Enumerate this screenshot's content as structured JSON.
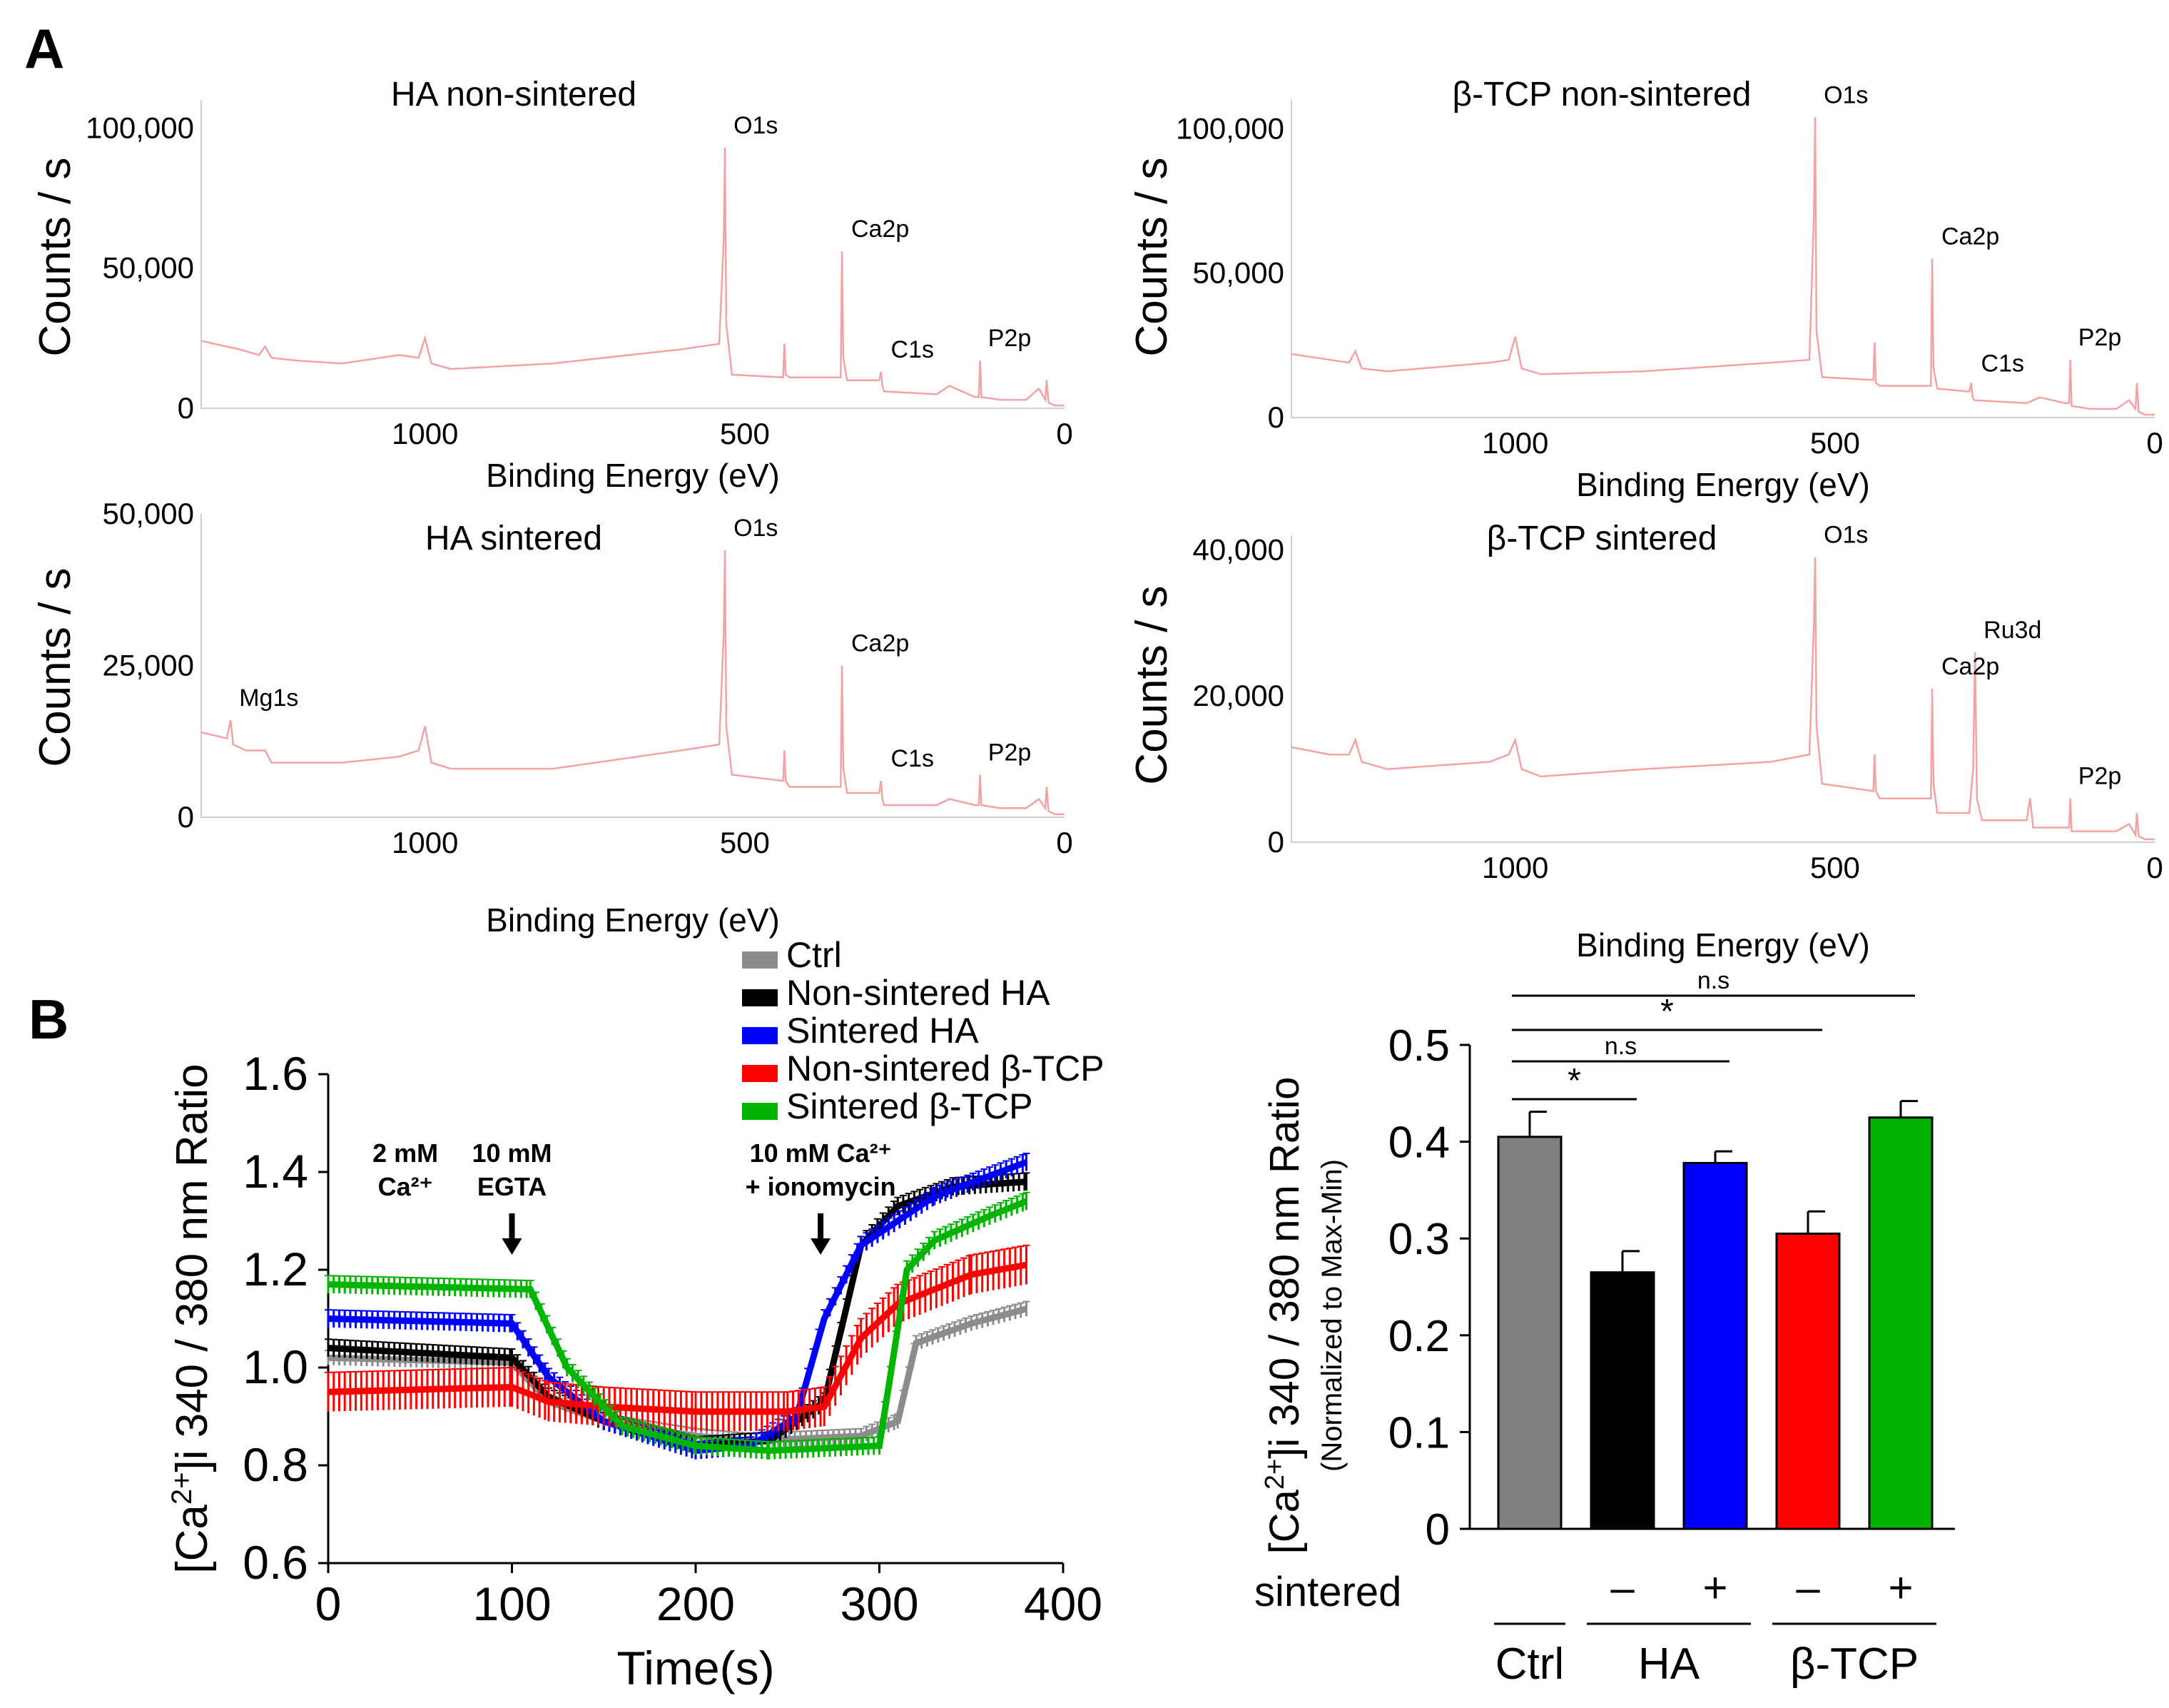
{
  "panel_labels": {
    "a": "A",
    "b": "B"
  },
  "colors": {
    "spectrum": "#f2a3a3",
    "ctrl": "#8c8c8c",
    "non_sintered_ha": "#000000",
    "sintered_ha": "#0000ff",
    "non_sintered_tcp": "#ff0000",
    "sintered_tcp": "#00b400",
    "bar_ctrl": "#808080"
  },
  "chart_data": [
    {
      "type": "line",
      "title": "HA non-sintered",
      "xlabel": "Binding Energy (eV)",
      "ylabel": "Counts / s",
      "x_reversed": true,
      "xlim": [
        1350,
        0
      ],
      "ylim": [
        0,
        110000
      ],
      "xticks": [
        {
          "value": 1000,
          "label": "1000"
        },
        {
          "value": 500,
          "label": "500"
        },
        {
          "value": 0,
          "label": "0"
        }
      ],
      "yticks": [
        {
          "value": 0,
          "label": "0"
        },
        {
          "value": 50000,
          "label": "50,000"
        },
        {
          "value": 100000,
          "label": "100,000"
        }
      ],
      "peaks": [
        {
          "label": "O1s",
          "energy": 531,
          "counts": 93000
        },
        {
          "label": "Ca2p",
          "energy": 347,
          "counts": 56000
        },
        {
          "label": "C1s",
          "energy": 285,
          "counts": 13000
        },
        {
          "label": "P2p",
          "energy": 133,
          "counts": 17000
        }
      ],
      "series": [
        {
          "x": [
            1350,
            1290,
            1260,
            1250,
            1240,
            1200,
            1130,
            1040,
            1010,
            1000,
            990,
            960,
            800,
            600,
            540,
            533,
            531,
            529,
            520,
            440,
            438,
            436,
            430,
            350,
            348,
            346,
            340,
            290,
            287,
            285,
            282,
            200,
            180,
            140,
            134,
            132,
            130,
            100,
            60,
            40,
            30,
            28,
            25,
            15,
            0
          ],
          "y": [
            24000,
            21000,
            19000,
            22000,
            18000,
            17000,
            16000,
            19000,
            18000,
            25000,
            16000,
            14000,
            16000,
            21000,
            23000,
            60000,
            93000,
            30000,
            12000,
            11000,
            23000,
            12000,
            11000,
            11000,
            56000,
            18000,
            10000,
            10000,
            13000,
            8000,
            6000,
            5000,
            8000,
            4000,
            4000,
            17000,
            4000,
            3000,
            3000,
            7000,
            3000,
            10000,
            2000,
            1000,
            1000
          ]
        }
      ]
    },
    {
      "type": "line",
      "title": "β-TCP non-sintered",
      "xlabel": "Binding Energy (eV)",
      "ylabel": "Counts / s",
      "x_reversed": true,
      "xlim": [
        1350,
        0
      ],
      "ylim": [
        0,
        110000
      ],
      "xticks": [
        {
          "value": 1000,
          "label": "1000"
        },
        {
          "value": 500,
          "label": "500"
        },
        {
          "value": 0,
          "label": "0"
        }
      ],
      "yticks": [
        {
          "value": 0,
          "label": "0"
        },
        {
          "value": 50000,
          "label": "50,000"
        },
        {
          "value": 100000,
          "label": "100,000"
        }
      ],
      "peaks": [
        {
          "label": "O1s",
          "energy": 531,
          "counts": 104000
        },
        {
          "label": "Ca2p",
          "energy": 347,
          "counts": 55000
        },
        {
          "label": "C1s",
          "energy": 285,
          "counts": 11000
        },
        {
          "label": "P2p",
          "energy": 133,
          "counts": 20000
        }
      ],
      "series": [
        {
          "x": [
            1350,
            1260,
            1250,
            1240,
            1200,
            1040,
            1010,
            1000,
            990,
            960,
            800,
            600,
            540,
            533,
            531,
            529,
            520,
            440,
            438,
            436,
            430,
            350,
            348,
            346,
            340,
            290,
            287,
            285,
            282,
            200,
            180,
            140,
            134,
            132,
            130,
            100,
            60,
            40,
            30,
            28,
            25,
            15,
            0
          ],
          "y": [
            22000,
            19000,
            23000,
            17000,
            16000,
            19000,
            20000,
            28000,
            17000,
            15000,
            16000,
            19000,
            20000,
            70000,
            104000,
            30000,
            14000,
            13000,
            26000,
            12000,
            11000,
            11000,
            55000,
            17000,
            10000,
            9000,
            12000,
            7000,
            6000,
            5000,
            7000,
            5000,
            5000,
            20000,
            4000,
            3000,
            3000,
            6000,
            3000,
            12000,
            2000,
            1000,
            1000
          ]
        }
      ]
    },
    {
      "type": "line",
      "title": "HA sintered",
      "xlabel": "Binding Energy (eV)",
      "ylabel": "Counts / s",
      "x_reversed": true,
      "xlim": [
        1350,
        0
      ],
      "ylim": [
        0,
        50000
      ],
      "xticks": [
        {
          "value": 1000,
          "label": "1000"
        },
        {
          "value": 500,
          "label": "500"
        },
        {
          "value": 0,
          "label": "0"
        }
      ],
      "yticks": [
        {
          "value": 0,
          "label": "0"
        },
        {
          "value": 25000,
          "label": "25,000"
        },
        {
          "value": 50000,
          "label": "50,000"
        }
      ],
      "peaks": [
        {
          "label": "Mg1s",
          "energy": 1304,
          "counts": 16000
        },
        {
          "label": "O1s",
          "energy": 531,
          "counts": 44000
        },
        {
          "label": "Ca2p",
          "energy": 347,
          "counts": 25000
        },
        {
          "label": "C1s",
          "energy": 285,
          "counts": 6000
        },
        {
          "label": "P2p",
          "energy": 133,
          "counts": 7000
        }
      ],
      "series": [
        {
          "x": [
            1350,
            1310,
            1304,
            1300,
            1280,
            1250,
            1240,
            1200,
            1130,
            1040,
            1010,
            1000,
            990,
            960,
            800,
            600,
            540,
            533,
            531,
            529,
            520,
            440,
            438,
            436,
            430,
            350,
            348,
            346,
            340,
            290,
            287,
            285,
            282,
            200,
            180,
            140,
            134,
            132,
            130,
            100,
            60,
            40,
            30,
            28,
            25,
            15,
            0
          ],
          "y": [
            14000,
            13000,
            16000,
            12000,
            11000,
            11000,
            9000,
            9000,
            9000,
            10000,
            11000,
            15000,
            9000,
            8000,
            8000,
            11000,
            12000,
            30000,
            44000,
            15000,
            7000,
            6000,
            11000,
            6000,
            5000,
            5000,
            25000,
            8000,
            4000,
            4000,
            6000,
            3000,
            2000,
            2000,
            3000,
            2000,
            2000,
            7000,
            2000,
            1500,
            1500,
            3000,
            1500,
            5000,
            1000,
            500,
            500
          ]
        }
      ]
    },
    {
      "type": "line",
      "title": "β-TCP sintered",
      "xlabel": "Binding Energy (eV)",
      "ylabel": "Counts / s",
      "x_reversed": true,
      "xlim": [
        1350,
        0
      ],
      "ylim": [
        0,
        42000
      ],
      "xticks": [
        {
          "value": 1000,
          "label": "1000"
        },
        {
          "value": 500,
          "label": "500"
        },
        {
          "value": 0,
          "label": "0"
        }
      ],
      "yticks": [
        {
          "value": 0,
          "label": "0"
        },
        {
          "value": 20000,
          "label": "20,000"
        },
        {
          "value": 40000,
          "label": "40,000"
        }
      ],
      "peaks": [
        {
          "label": "O1s",
          "energy": 531,
          "counts": 39000
        },
        {
          "label": "Ca2p",
          "energy": 347,
          "counts": 21000
        },
        {
          "label": "Ru3d",
          "energy": 281,
          "counts": 26000
        },
        {
          "label": "P2p",
          "energy": 133,
          "counts": 6000
        }
      ],
      "series": [
        {
          "x": [
            1350,
            1290,
            1260,
            1250,
            1240,
            1200,
            1040,
            1010,
            1000,
            990,
            960,
            800,
            600,
            540,
            533,
            531,
            529,
            520,
            440,
            438,
            436,
            430,
            350,
            348,
            346,
            340,
            290,
            284,
            281,
            278,
            270,
            200,
            195,
            190,
            180,
            140,
            134,
            132,
            130,
            100,
            60,
            40,
            30,
            28,
            25,
            15,
            0
          ],
          "y": [
            13000,
            12000,
            12000,
            14000,
            11000,
            10000,
            11000,
            12000,
            14000,
            10000,
            9000,
            10000,
            11000,
            12000,
            30000,
            39000,
            16000,
            8000,
            7000,
            12000,
            7000,
            6000,
            6000,
            21000,
            8000,
            4000,
            4000,
            10000,
            26000,
            6000,
            3000,
            3000,
            6000,
            2000,
            2000,
            2000,
            2000,
            6000,
            1500,
            1500,
            1500,
            2500,
            1000,
            4000,
            800,
            400,
            400
          ]
        }
      ]
    },
    {
      "type": "line",
      "xlabel": "Time(s)",
      "ylabel": "[Ca2+]i 340 / 380 nm Ratio",
      "xlim": [
        0,
        400
      ],
      "ylim": [
        0.6,
        1.6
      ],
      "xticks": [
        0,
        100,
        200,
        300,
        400
      ],
      "yticks": [
        {
          "value": 0.6,
          "label": "0.6"
        },
        {
          "value": 0.8,
          "label": "0.8"
        },
        {
          "value": 1.0,
          "label": "1.0"
        },
        {
          "value": 1.2,
          "label": "1.2"
        },
        {
          "value": 1.4,
          "label": "1.4"
        },
        {
          "value": 1.6,
          "label": "1.6"
        }
      ],
      "annotations": [
        {
          "line1": "2 mM",
          "line2": "Ca²⁺",
          "time": 42
        },
        {
          "line1": "10 mM",
          "line2": "EGTA",
          "time": 100
        },
        {
          "line1": "10 mM Ca²⁺",
          "line2": "+ ionomycin",
          "time": 268
        }
      ],
      "legend_position": "top-center",
      "series": [
        {
          "name": "Ctrl",
          "color": "#8c8c8c",
          "err": 0.015,
          "x": [
            0,
            100,
            120,
            150,
            200,
            230,
            290,
            310,
            320,
            350,
            380
          ],
          "y": [
            1.02,
            1.01,
            0.93,
            0.89,
            0.86,
            0.85,
            0.86,
            0.89,
            1.05,
            1.09,
            1.12
          ]
        },
        {
          "name": "Non-sintered HA",
          "color": "#000000",
          "err": 0.018,
          "x": [
            0,
            100,
            120,
            150,
            200,
            240,
            270,
            290,
            310,
            340,
            380
          ],
          "y": [
            1.04,
            1.02,
            0.94,
            0.89,
            0.84,
            0.85,
            0.93,
            1.25,
            1.33,
            1.37,
            1.38
          ]
        },
        {
          "name": "Sintered HA",
          "color": "#0000ff",
          "err": 0.018,
          "x": [
            0,
            100,
            120,
            150,
            200,
            230,
            255,
            270,
            290,
            330,
            380
          ],
          "y": [
            1.1,
            1.09,
            0.98,
            0.89,
            0.83,
            0.84,
            0.9,
            1.1,
            1.25,
            1.35,
            1.42
          ]
        },
        {
          "name": "Non-sintered β-TCP",
          "color": "#ff0000",
          "err": 0.04,
          "x": [
            0,
            100,
            120,
            150,
            200,
            250,
            270,
            290,
            310,
            350,
            380
          ],
          "y": [
            0.95,
            0.96,
            0.93,
            0.92,
            0.91,
            0.91,
            0.92,
            1.06,
            1.13,
            1.19,
            1.21
          ]
        },
        {
          "name": "Sintered β-TCP",
          "color": "#00b400",
          "err": 0.018,
          "x": [
            0,
            110,
            130,
            160,
            200,
            240,
            300,
            315,
            330,
            360,
            380
          ],
          "y": [
            1.17,
            1.16,
            1.0,
            0.88,
            0.84,
            0.83,
            0.84,
            1.2,
            1.26,
            1.31,
            1.34
          ]
        }
      ]
    },
    {
      "type": "bar",
      "ylabel": "[Ca2+]i 340 / 380 nm Ratio",
      "ylabel_sub": "(Normalized to Max-Min)",
      "ylim": [
        0,
        0.5
      ],
      "yticks": [
        {
          "value": 0,
          "label": "0"
        },
        {
          "value": 0.1,
          "label": "0.1"
        },
        {
          "value": 0.2,
          "label": "0.2"
        },
        {
          "value": 0.3,
          "label": "0.3"
        },
        {
          "value": 0.4,
          "label": "0.4"
        },
        {
          "value": 0.5,
          "label": "0.5"
        }
      ],
      "bars": [
        {
          "value": 0.405,
          "err": 0.026,
          "color": "#808080",
          "sign": ""
        },
        {
          "value": 0.265,
          "err": 0.022,
          "color": "#000000",
          "sign": "–"
        },
        {
          "value": 0.378,
          "err": 0.012,
          "color": "#0000ff",
          "sign": "+"
        },
        {
          "value": 0.305,
          "err": 0.023,
          "color": "#ff0000",
          "sign": "–"
        },
        {
          "value": 0.425,
          "err": 0.017,
          "color": "#00b400",
          "sign": "+"
        }
      ],
      "sign_row_label": "sintered",
      "groups": [
        {
          "label": "Ctrl",
          "bars": [
            0
          ]
        },
        {
          "label": "HA",
          "bars": [
            1,
            2
          ]
        },
        {
          "label": "β-TCP",
          "bars": [
            3,
            4
          ]
        }
      ],
      "significance": [
        {
          "from": 0,
          "to": 1,
          "label": "*"
        },
        {
          "from": 0,
          "to": 2,
          "label": "n.s"
        },
        {
          "from": 0,
          "to": 3,
          "label": "*"
        },
        {
          "from": 0,
          "to": 4,
          "label": "n.s"
        }
      ]
    }
  ]
}
